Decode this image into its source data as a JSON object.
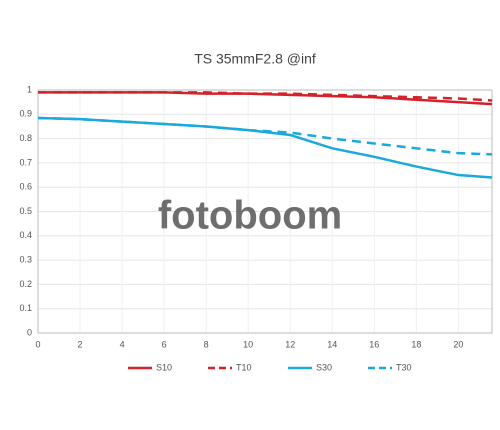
{
  "chart_data": {
    "type": "line",
    "title": "TS 35mmF2.8 @inf",
    "watermark": "fotoboom",
    "x": [
      0,
      2,
      4,
      6,
      8,
      10,
      12,
      14,
      16,
      18,
      20,
      21.6
    ],
    "xlim": [
      0,
      21.6
    ],
    "xticks": [
      0,
      2,
      4,
      6,
      8,
      10,
      12,
      14,
      16,
      18,
      20
    ],
    "ylim": [
      0,
      1
    ],
    "yticks": [
      0,
      0.1,
      0.2,
      0.3,
      0.4,
      0.5,
      0.6,
      0.7,
      0.8,
      0.9,
      1
    ],
    "grid": true,
    "legend": "bottom",
    "series": [
      {
        "name": "S10",
        "color": "#d3222a",
        "dash": false,
        "values": [
          0.99,
          0.99,
          0.99,
          0.99,
          0.985,
          0.985,
          0.98,
          0.975,
          0.97,
          0.96,
          0.95,
          0.942
        ]
      },
      {
        "name": "T10",
        "color": "#d3222a",
        "dash": true,
        "values": [
          0.99,
          0.99,
          0.99,
          0.99,
          0.99,
          0.985,
          0.985,
          0.98,
          0.975,
          0.97,
          0.965,
          0.957
        ]
      },
      {
        "name": "S30",
        "color": "#1ba9dc",
        "dash": false,
        "values": [
          0.885,
          0.88,
          0.87,
          0.86,
          0.85,
          0.835,
          0.815,
          0.76,
          0.725,
          0.685,
          0.65,
          0.64
        ]
      },
      {
        "name": "T30",
        "color": "#1ba9dc",
        "dash": true,
        "values": [
          0.885,
          0.88,
          0.87,
          0.86,
          0.85,
          0.835,
          0.825,
          0.8,
          0.78,
          0.76,
          0.74,
          0.735
        ]
      }
    ]
  }
}
